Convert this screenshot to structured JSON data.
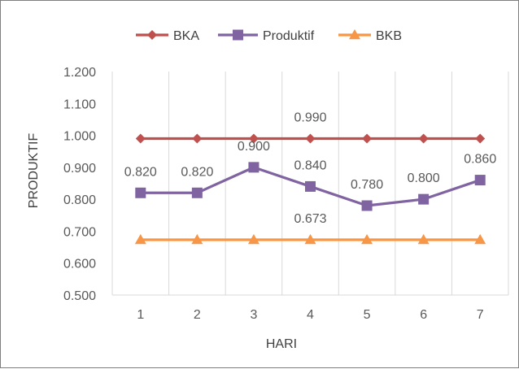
{
  "chart_data": {
    "type": "line",
    "title": "",
    "xlabel": "HARI",
    "ylabel": "PRODUKTIF",
    "categories": [
      "1",
      "2",
      "3",
      "4",
      "5",
      "6",
      "7"
    ],
    "ylim": [
      0.5,
      1.2
    ],
    "yticks": [
      "0.500",
      "0.600",
      "0.700",
      "0.800",
      "0.900",
      "1.000",
      "1.100",
      "1.200"
    ],
    "grid": "vertical",
    "legend": "top",
    "series": [
      {
        "name": "BKA",
        "color": "#c0504d",
        "marker": "diamond",
        "values": [
          0.99,
          0.99,
          0.99,
          0.99,
          0.99,
          0.99,
          0.99
        ],
        "labels": [
          "",
          "",
          "",
          "0.990",
          "",
          "",
          ""
        ]
      },
      {
        "name": "Produktif",
        "color": "#8064a2",
        "marker": "square",
        "values": [
          0.82,
          0.82,
          0.9,
          0.84,
          0.78,
          0.8,
          0.86
        ],
        "labels": [
          "0.820",
          "0.820",
          "0.900",
          "0.840",
          "0.780",
          "0.800",
          "0.860"
        ]
      },
      {
        "name": "BKB",
        "color": "#f79646",
        "marker": "triangle",
        "values": [
          0.673,
          0.673,
          0.673,
          0.673,
          0.673,
          0.673,
          0.673
        ],
        "labels": [
          "",
          "",
          "",
          "0.673",
          "",
          "",
          ""
        ]
      }
    ]
  }
}
